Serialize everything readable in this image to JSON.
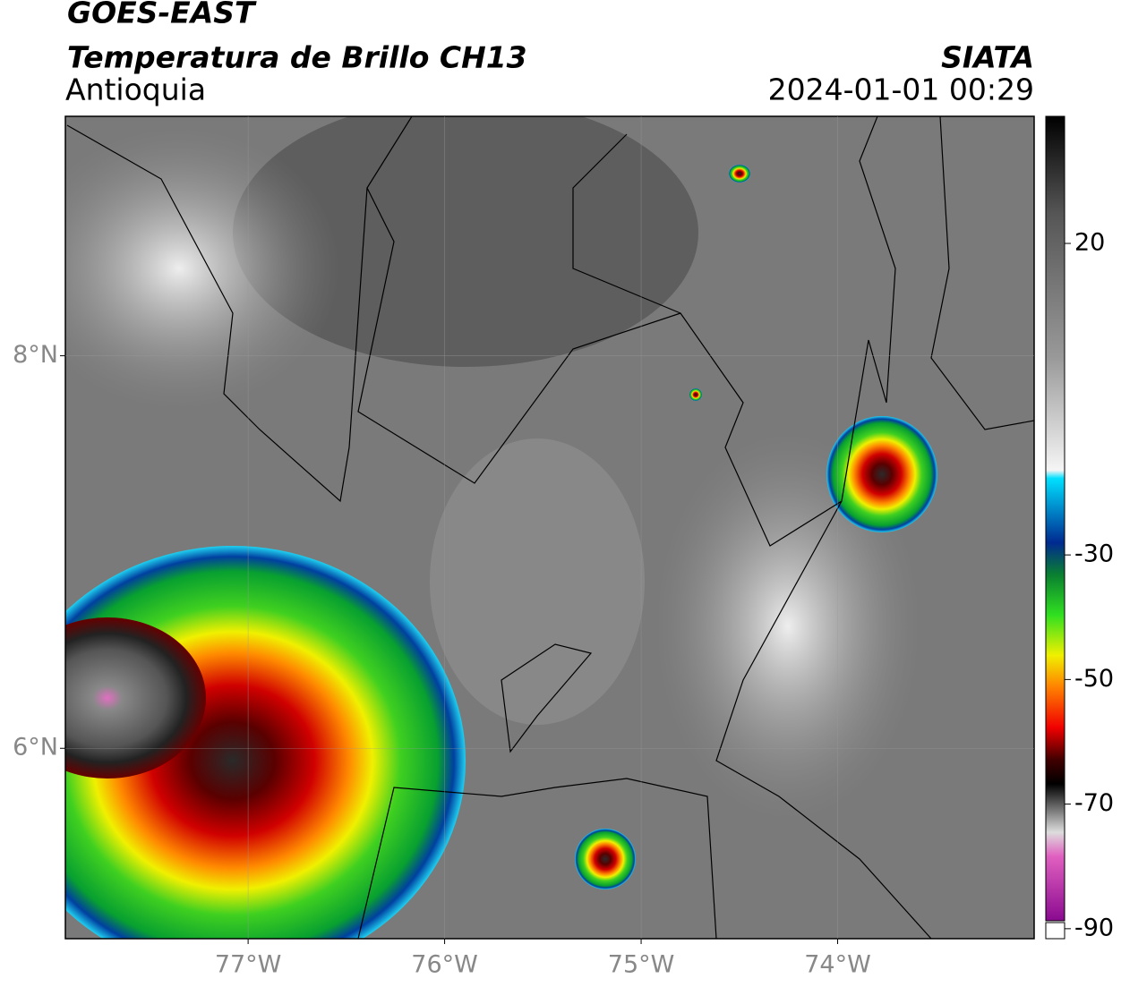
{
  "header": {
    "title": "GOES-EAST",
    "subtitle": "Temperatura de Brillo CH13",
    "region": "Antioquia",
    "source": "SIATA",
    "datetime": "2024-01-01 00:29"
  },
  "map": {
    "xlim": [
      -77.93,
      -73.0
    ],
    "ylim": [
      5.03,
      9.22
    ],
    "xticks": [
      {
        "value": -77,
        "label": "77°W"
      },
      {
        "value": -76,
        "label": "76°W"
      },
      {
        "value": -75,
        "label": "75°W"
      },
      {
        "value": -74,
        "label": "74°W"
      }
    ],
    "yticks": [
      {
        "value": 8,
        "label": "8°N"
      },
      {
        "value": 6,
        "label": "6°N"
      }
    ]
  },
  "colorbar": {
    "clim": [
      -91.6,
      40.4
    ],
    "ticks": [
      20,
      -30,
      -50,
      -70,
      -90
    ]
  }
}
